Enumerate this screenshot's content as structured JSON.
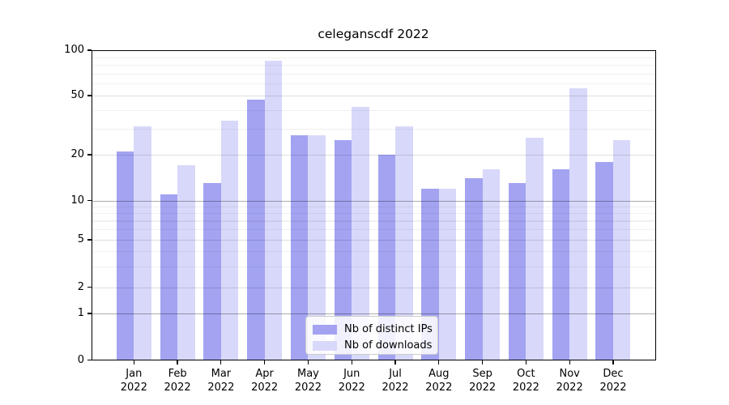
{
  "title": "celeganscdf 2022",
  "chart_data": {
    "type": "bar",
    "title": "celeganscdf 2022",
    "categories": [
      "Jan 2022",
      "Feb 2022",
      "Mar 2022",
      "Apr 2022",
      "May 2022",
      "Jun 2022",
      "Jul 2022",
      "Aug 2022",
      "Sep 2022",
      "Oct 2022",
      "Nov 2022",
      "Dec 2022"
    ],
    "x_tick_line1": [
      "Jan",
      "Feb",
      "Mar",
      "Apr",
      "May",
      "Jun",
      "Jul",
      "Aug",
      "Sep",
      "Oct",
      "Nov",
      "Dec"
    ],
    "x_tick_line2": "2022",
    "series": [
      {
        "name": "Nb of distinct IPs",
        "color": "#a3a3f2",
        "values": [
          21,
          11,
          13,
          47,
          27,
          25,
          20,
          12,
          14,
          13,
          16,
          18
        ]
      },
      {
        "name": "Nb of downloads",
        "color": "#d8d8fa",
        "values": [
          31,
          17,
          34,
          85,
          27,
          42,
          31,
          12,
          16,
          26,
          56,
          25
        ]
      }
    ],
    "yscale": "symlog",
    "ylim": [
      0,
      100
    ],
    "y_ticks": [
      0,
      1,
      2,
      5,
      10,
      20,
      50,
      100
    ],
    "y_minor_gridlines": [
      3,
      4,
      6,
      7,
      8,
      9,
      30,
      40,
      60,
      70,
      80,
      90
    ],
    "grid": "horizontal, drawn above bars",
    "xlabel": "",
    "ylabel": "",
    "legend_position": "lower center"
  },
  "legend": {
    "items": [
      {
        "label": "Nb of distinct IPs",
        "color": "#a3a3f2"
      },
      {
        "label": "Nb of downloads",
        "color": "#d8d8fa"
      }
    ]
  },
  "colors": {
    "background": "#ffffff",
    "spine": "#000000",
    "grid_major": "rgba(0,0,0,0.32)",
    "grid_mid": "rgba(0,0,0,0.13)",
    "grid_minor": "rgba(0,0,0,0.06)"
  }
}
